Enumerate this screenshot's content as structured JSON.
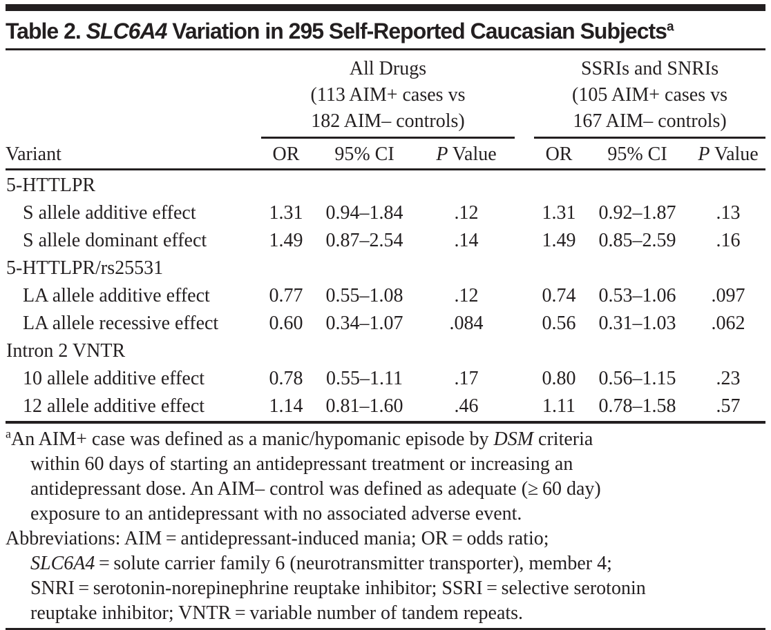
{
  "title": {
    "prefix": "Table 2. ",
    "gene": "SLC6A4",
    "rest": " Variation in 295 Self-Reported Caucasian Subjects",
    "sup": "a"
  },
  "table": {
    "header": {
      "variant_col": "Variant",
      "groups": [
        {
          "name": "all-drugs",
          "lines": [
            "All Drugs",
            "(113 AIM+ cases vs",
            "182 AIM– controls)"
          ]
        },
        {
          "name": "ssri-snri",
          "lines": [
            "SSRIs and SNRIs",
            "(105 AIM+ cases vs",
            "167 AIM– controls)"
          ]
        }
      ],
      "or_label": "OR",
      "ci_label": "95% CI",
      "p_label": {
        "italic": "P",
        "rest": " Value"
      }
    },
    "rows": [
      {
        "type": "group",
        "label": "5-HTTLPR"
      },
      {
        "type": "data",
        "label": "S allele additive effect",
        "all_drugs": {
          "or": "1.31",
          "ci": "0.94–1.84",
          "p": ".12"
        },
        "ssri_snri": {
          "or": "1.31",
          "ci": "0.92–1.87",
          "p": ".13"
        }
      },
      {
        "type": "data",
        "label": "S allele dominant effect",
        "all_drugs": {
          "or": "1.49",
          "ci": "0.87–2.54",
          "p": ".14"
        },
        "ssri_snri": {
          "or": "1.49",
          "ci": "0.85–2.59",
          "p": ".16"
        }
      },
      {
        "type": "group",
        "label": "5-HTTLPR/rs25531"
      },
      {
        "type": "data",
        "label": "LA allele additive effect",
        "all_drugs": {
          "or": "0.77",
          "ci": "0.55–1.08",
          "p": ".12"
        },
        "ssri_snri": {
          "or": "0.74",
          "ci": "0.53–1.06",
          "p": ".097"
        }
      },
      {
        "type": "data",
        "label": "LA allele recessive effect",
        "all_drugs": {
          "or": "0.60",
          "ci": "0.34–1.07",
          "p": ".084"
        },
        "ssri_snri": {
          "or": "0.56",
          "ci": "0.31–1.03",
          "p": ".062"
        }
      },
      {
        "type": "group",
        "label": "Intron 2 VNTR"
      },
      {
        "type": "data",
        "label": "10 allele additive effect",
        "all_drugs": {
          "or": "0.78",
          "ci": "0.55–1.11",
          "p": ".17"
        },
        "ssri_snri": {
          "or": "0.80",
          "ci": "0.56–1.15",
          "p": ".23"
        }
      },
      {
        "type": "data",
        "label": "12 allele additive effect",
        "all_drugs": {
          "or": "1.14",
          "ci": "0.81–1.60",
          "p": ".46"
        },
        "ssri_snri": {
          "or": "1.11",
          "ci": "0.78–1.58",
          "p": ".57"
        }
      }
    ]
  },
  "footnotes": {
    "note_a": {
      "sup": "a",
      "lines": [
        {
          "pre": "An AIM+ case was defined as a manic/hypomanic episode by ",
          "italic": "DSM",
          "post": " criteria"
        },
        {
          "pre": "within 60 days of starting an antidepressant treatment or increasing an"
        },
        {
          "pre": "antidepressant dose. An AIM– control was defined as adequate (≥ 60 day)"
        },
        {
          "pre": "exposure to an antidepressant with no associated adverse event."
        }
      ]
    },
    "abbreviations": {
      "lines": [
        {
          "pre": "Abbreviations: AIM = antidepressant-induced mania; OR = odds ratio;"
        },
        {
          "italic": "SLC6A4",
          "post": " = solute carrier family 6 (neurotransmitter transporter), member 4;"
        },
        {
          "pre": "SNRI = serotonin-norepinephrine reuptake inhibitor; SSRI = selective serotonin"
        },
        {
          "pre": "reuptake inhibitor; VNTR = variable number of tandem repeats."
        }
      ]
    }
  },
  "colors": {
    "ink": "#231f20",
    "background": "#ffffff"
  }
}
